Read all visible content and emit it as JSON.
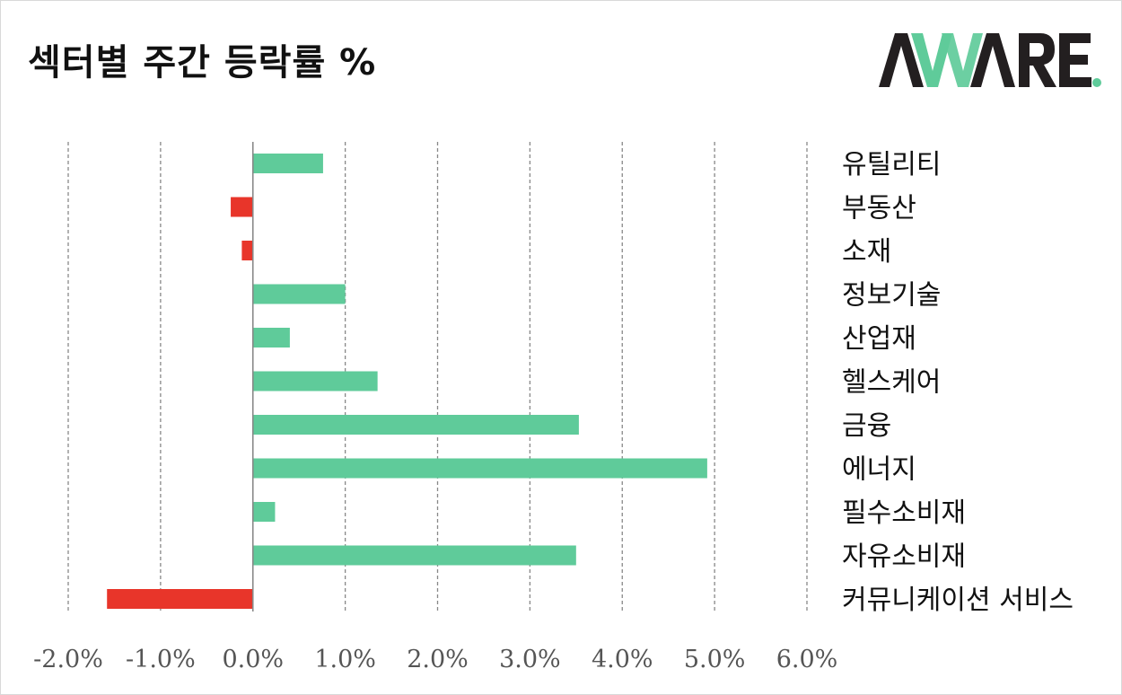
{
  "title": "섹터별 주간 등락률 %",
  "logo": {
    "text": "AWARE.",
    "colors": {
      "dark": "#231f20",
      "accent": "#5fcb9a"
    }
  },
  "colors": {
    "positive": "#5fcb9a",
    "negative": "#e8352a",
    "grid": "#888888",
    "axis": "#888888"
  },
  "chart_data": {
    "type": "bar",
    "orientation": "horizontal",
    "title": "섹터별 주간 등락률 %",
    "categories": [
      "유틸리티",
      "부동산",
      "소재",
      "정보기술",
      "산업재",
      "헬스케어",
      "금융",
      "에너지",
      "필수소비재",
      "자유소비재",
      "커뮤니케이션 서비스"
    ],
    "values": [
      0.76,
      -0.24,
      -0.12,
      1.0,
      0.4,
      1.35,
      3.53,
      4.92,
      0.24,
      3.5,
      -1.58
    ],
    "xlim": [
      -2.0,
      6.0
    ],
    "xticks": [
      -2,
      -1,
      0,
      1,
      2,
      3,
      4,
      5,
      6
    ],
    "xtick_labels": [
      "-2.0%",
      "-1.0%",
      "0.0%",
      "1.0%",
      "2.0%",
      "3.0%",
      "4.0%",
      "5.0%",
      "6.0%"
    ],
    "grid": "vertical dashed",
    "legend": "none",
    "category_labels_position": "right"
  }
}
